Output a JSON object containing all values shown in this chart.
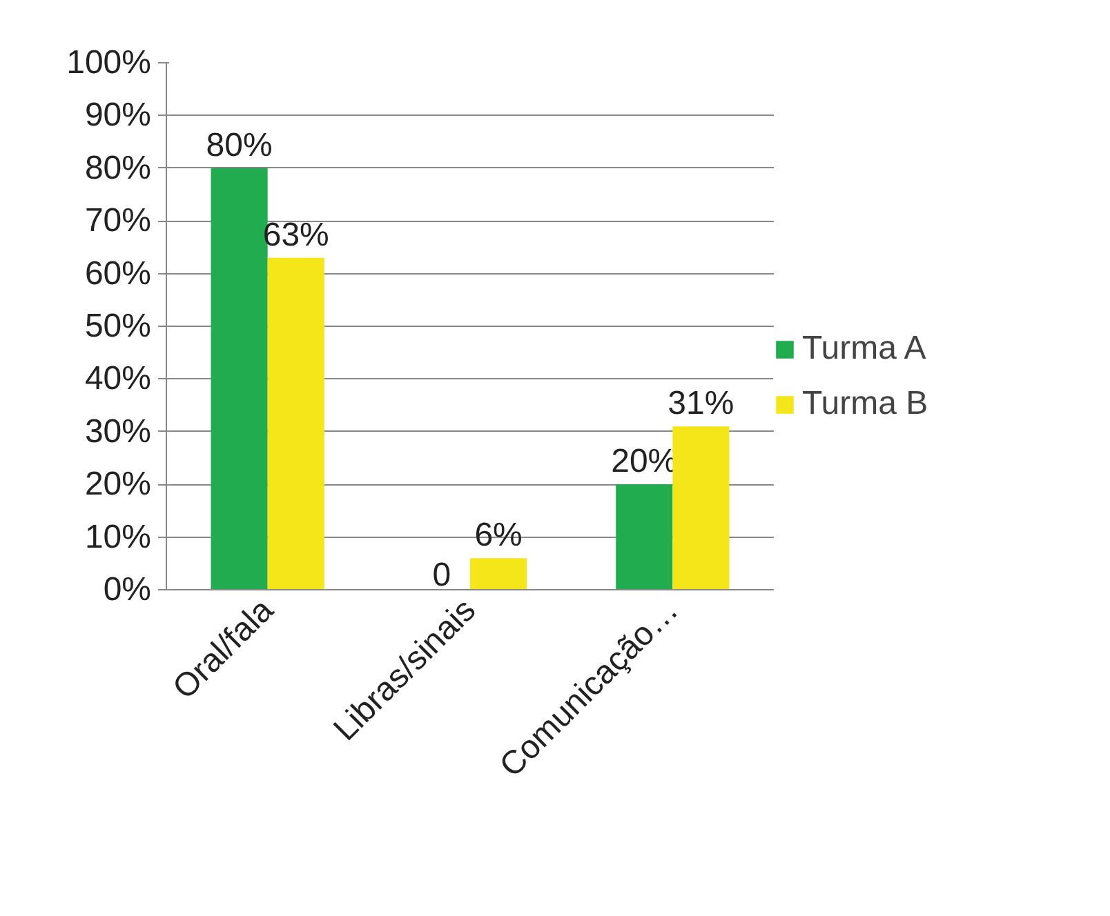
{
  "chart_data": {
    "type": "bar",
    "categories": [
      "Oral/fala",
      "Libras/sinais",
      "Comunicação…"
    ],
    "series": [
      {
        "name": "Turma A",
        "color": "#21ad4f",
        "values": [
          80,
          0,
          20
        ],
        "value_labels": [
          "80%",
          "0",
          "20%"
        ]
      },
      {
        "name": "Turma B",
        "color": "#f4e619",
        "values": [
          63,
          6,
          31
        ],
        "value_labels": [
          "63%",
          "6%",
          "31%"
        ]
      }
    ],
    "ylim": [
      0,
      100
    ],
    "yticks": [
      {
        "value": 0,
        "label": "0%"
      },
      {
        "value": 10,
        "label": "10%"
      },
      {
        "value": 20,
        "label": "20%"
      },
      {
        "value": 30,
        "label": "30%"
      },
      {
        "value": 40,
        "label": "40%"
      },
      {
        "value": 50,
        "label": "50%"
      },
      {
        "value": 60,
        "label": "60%"
      },
      {
        "value": 70,
        "label": "70%"
      },
      {
        "value": 80,
        "label": "80%"
      },
      {
        "value": 90,
        "label": "90%"
      },
      {
        "value": 100,
        "label": "100%"
      }
    ],
    "grid": "y",
    "legend": "right"
  }
}
